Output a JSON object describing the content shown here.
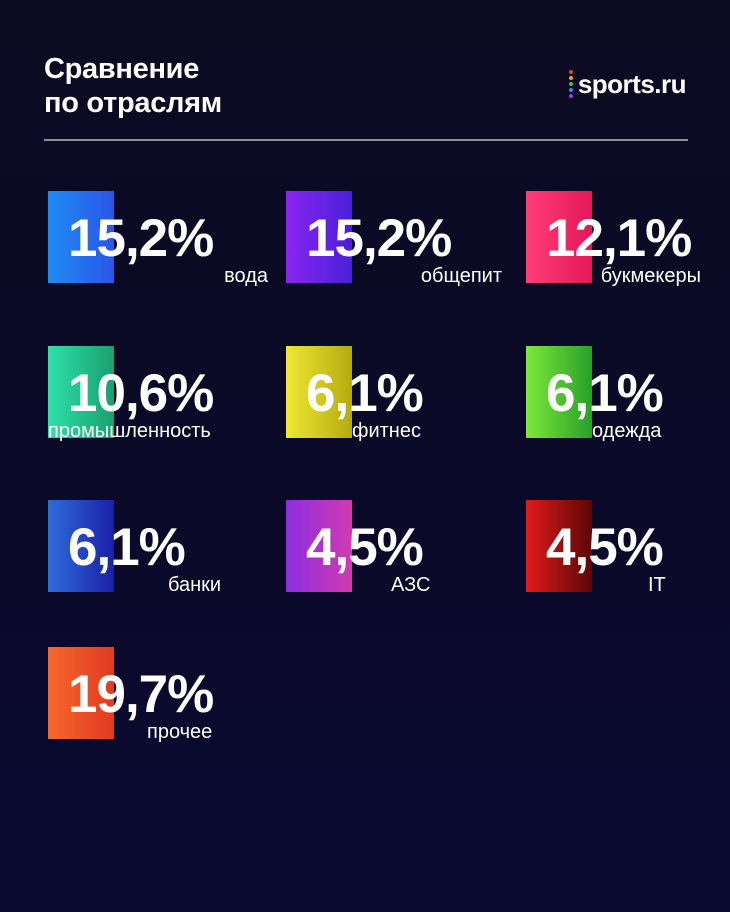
{
  "header": {
    "title_line1": "Сравнение",
    "title_line2": "по отраслям"
  },
  "logo": {
    "text": "sports.ru",
    "dot_colors": [
      "#e8412f",
      "#f2a516",
      "#3ac25c",
      "#2f8fe6",
      "#9b3ce0"
    ]
  },
  "stats": [
    {
      "value": "15,2%",
      "label": "вода",
      "gradient": [
        "#1f8cf5",
        "#2a56e8"
      ]
    },
    {
      "value": "15,2%",
      "label": "общепит",
      "gradient": [
        "#8a25f2",
        "#4a1fd8"
      ]
    },
    {
      "value": "12,1%",
      "label": "букмекеры",
      "gradient": [
        "#ff3d77",
        "#e3185a"
      ]
    },
    {
      "value": "10,6%",
      "label": "промышленность",
      "gradient": [
        "#2ee0a8",
        "#1aa070"
      ]
    },
    {
      "value": "6,1%",
      "label": "фитнес",
      "gradient": [
        "#efe833",
        "#b5aa10"
      ]
    },
    {
      "value": "6,1%",
      "label": "одежда",
      "gradient": [
        "#7fe83a",
        "#26a02a"
      ]
    },
    {
      "value": "6,1%",
      "label": "банки",
      "gradient": [
        "#2f6cd8",
        "#1a20a8"
      ]
    },
    {
      "value": "4,5%",
      "label": "АЗС",
      "gradient": [
        "#8a2ee0",
        "#d23ab0"
      ]
    },
    {
      "value": "4,5%",
      "label": "IT",
      "gradient": [
        "#e21a1a",
        "#5a0708"
      ]
    },
    {
      "value": "19,7%",
      "label": "прочее",
      "gradient": [
        "#f5682c",
        "#e13a22"
      ]
    }
  ]
}
